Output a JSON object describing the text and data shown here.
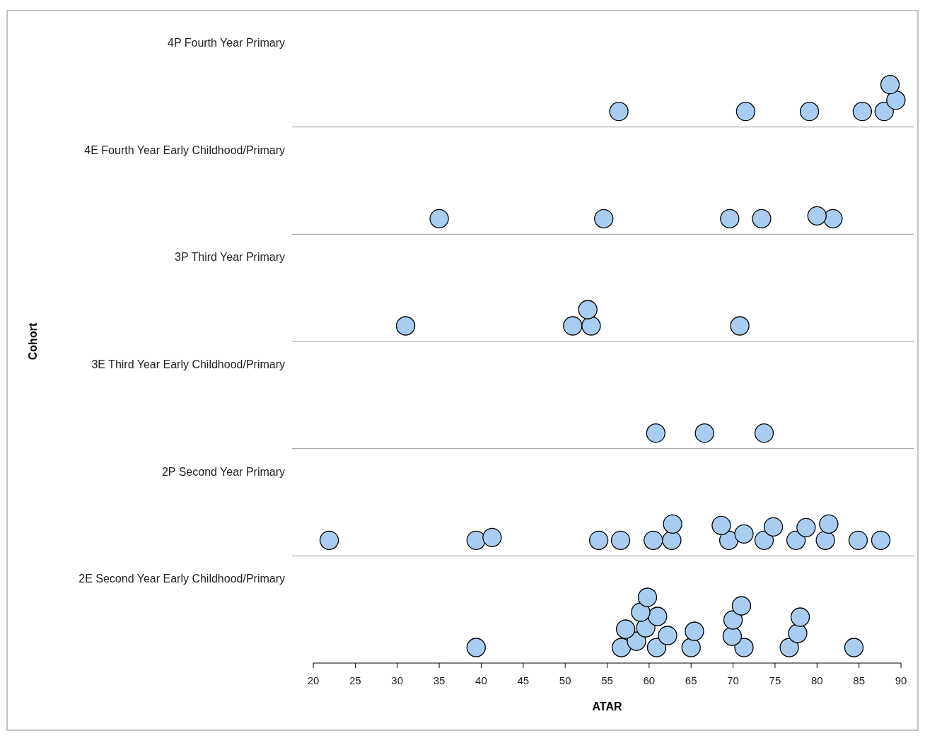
{
  "chart_data": {
    "type": "scatter",
    "orientation": "horizontal",
    "xlabel": "ATAR",
    "ylabel": "Cohort",
    "categories": [
      "4P Fourth Year Primary",
      "4E Fourth Year Early Childhood/Primary",
      "3P Third Year Primary",
      "3E Third Year Early Childhood/Primary",
      "2P Second Year Primary",
      "2E Second Year Early Childhood/Primary"
    ],
    "xlim": [
      20,
      90
    ],
    "xticks": [
      20,
      25,
      30,
      35,
      40,
      45,
      50,
      55,
      60,
      65,
      70,
      75,
      80,
      85,
      90
    ],
    "marker": "circle",
    "grid": false,
    "series": [
      {
        "color": "#a8cdf0",
        "x": [
          "4P Fourth Year Primary",
          "4P Fourth Year Primary",
          "4P Fourth Year Primary",
          "4P Fourth Year Primary",
          "4P Fourth Year Primary",
          "4P Fourth Year Primary",
          "4P Fourth Year Primary",
          "4E Fourth Year Early Childhood/Primary",
          "4E Fourth Year Early Childhood/Primary",
          "4E Fourth Year Early Childhood/Primary",
          "4E Fourth Year Early Childhood/Primary",
          "4E Fourth Year Early Childhood/Primary",
          "4E Fourth Year Early Childhood/Primary",
          "3P Third Year Primary",
          "3P Third Year Primary",
          "3P Third Year Primary",
          "3P Third Year Primary",
          "3P Third Year Primary",
          "3E Third Year Early Childhood/Primary",
          "3E Third Year Early Childhood/Primary",
          "3E Third Year Early Childhood/Primary",
          "2P Second Year Primary",
          "2P Second Year Primary",
          "2P Second Year Primary",
          "2P Second Year Primary",
          "2P Second Year Primary",
          "2P Second Year Primary",
          "2P Second Year Primary",
          "2P Second Year Primary",
          "2P Second Year Primary",
          "2P Second Year Primary",
          "2P Second Year Primary",
          "2P Second Year Primary",
          "2P Second Year Primary",
          "2P Second Year Primary",
          "2P Second Year Primary",
          "2P Second Year Primary",
          "2P Second Year Primary",
          "2P Second Year Primary",
          "2P Second Year Primary",
          "2E Second Year Early Childhood/Primary",
          "2E Second Year Early Childhood/Primary",
          "2E Second Year Early Childhood/Primary",
          "2E Second Year Early Childhood/Primary",
          "2E Second Year Early Childhood/Primary",
          "2E Second Year Early Childhood/Primary",
          "2E Second Year Early Childhood/Primary",
          "2E Second Year Early Childhood/Primary",
          "2E Second Year Early Childhood/Primary",
          "2E Second Year Early Childhood/Primary",
          "2E Second Year Early Childhood/Primary",
          "2E Second Year Early Childhood/Primary",
          "2E Second Year Early Childhood/Primary",
          "2E Second Year Early Childhood/Primary",
          "2E Second Year Early Childhood/Primary",
          "2E Second Year Early Childhood/Primary",
          "2E Second Year Early Childhood/Primary",
          "2E Second Year Early Childhood/Primary",
          "2E Second Year Early Childhood/Primary",
          "2E Second Year Early Childhood/Primary"
        ],
        "values": [
          56.4,
          71.5,
          79.1,
          85.4,
          88.0,
          89.4,
          88.7,
          35.0,
          54.6,
          69.6,
          73.4,
          81.9,
          80.0,
          31.0,
          50.9,
          53.1,
          52.7,
          70.8,
          60.8,
          66.6,
          73.7,
          21.9,
          39.4,
          41.3,
          54.0,
          56.6,
          60.5,
          62.7,
          69.5,
          71.3,
          73.7,
          74.8,
          77.5,
          81.0,
          84.9,
          87.6,
          62.8,
          68.6,
          78.7,
          81.4,
          39.4,
          56.7,
          58.5,
          60.9,
          65.0,
          71.3,
          76.7,
          77.7,
          84.4,
          57.2,
          59.6,
          61.0,
          65.4,
          69.9,
          78.0,
          59.0,
          62.2,
          70.0,
          59.8,
          71.0
        ]
      }
    ]
  }
}
